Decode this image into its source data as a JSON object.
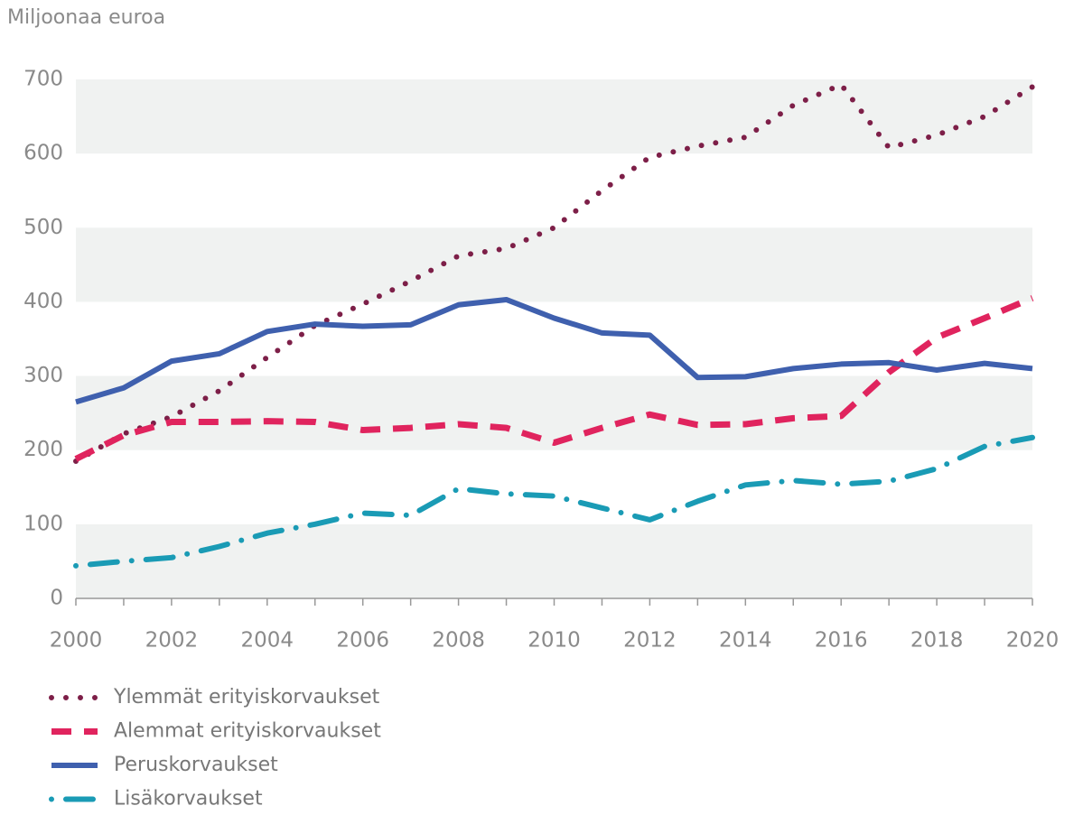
{
  "chart_data": {
    "type": "line",
    "y_axis_label": "Miljoonaa euroa",
    "x": [
      2000,
      2001,
      2002,
      2003,
      2004,
      2005,
      2006,
      2007,
      2008,
      2009,
      2010,
      2011,
      2012,
      2013,
      2014,
      2015,
      2016,
      2017,
      2018,
      2019,
      2020
    ],
    "xlim": [
      2000,
      2020
    ],
    "xticks": [
      2000,
      2002,
      2004,
      2006,
      2008,
      2010,
      2012,
      2014,
      2016,
      2018,
      2020
    ],
    "ylim": [
      0,
      700
    ],
    "yticks": [
      0,
      100,
      200,
      300,
      400,
      500,
      600,
      700
    ],
    "banded_background": true,
    "series": [
      {
        "name": "Ylemmät erityiskorvaukset",
        "color": "#7d1f48",
        "style": "dotted",
        "values": [
          185,
          222,
          245,
          280,
          325,
          368,
          397,
          428,
          462,
          472,
          500,
          550,
          595,
          610,
          622,
          665,
          693,
          608,
          625,
          650,
          690
        ]
      },
      {
        "name": "Alemmat erityiskorvaukset",
        "color": "#e0245e",
        "style": "dashed",
        "values": [
          188,
          220,
          238,
          238,
          239,
          238,
          227,
          230,
          235,
          230,
          210,
          230,
          248,
          234,
          235,
          243,
          246,
          305,
          352,
          378,
          405
        ]
      },
      {
        "name": "Peruskorvaukset",
        "color": "#3f60ae",
        "style": "solid",
        "values": [
          265,
          284,
          320,
          330,
          360,
          370,
          367,
          369,
          396,
          403,
          378,
          358,
          355,
          298,
          299,
          310,
          316,
          318,
          308,
          317,
          310
        ]
      },
      {
        "name": "Lisäkorvaukset",
        "color": "#1a9bb5",
        "style": "dashdot",
        "values": [
          44,
          50,
          55,
          70,
          88,
          100,
          115,
          112,
          148,
          141,
          138,
          122,
          106,
          131,
          153,
          159,
          154,
          158,
          175,
          205,
          217
        ]
      }
    ]
  }
}
